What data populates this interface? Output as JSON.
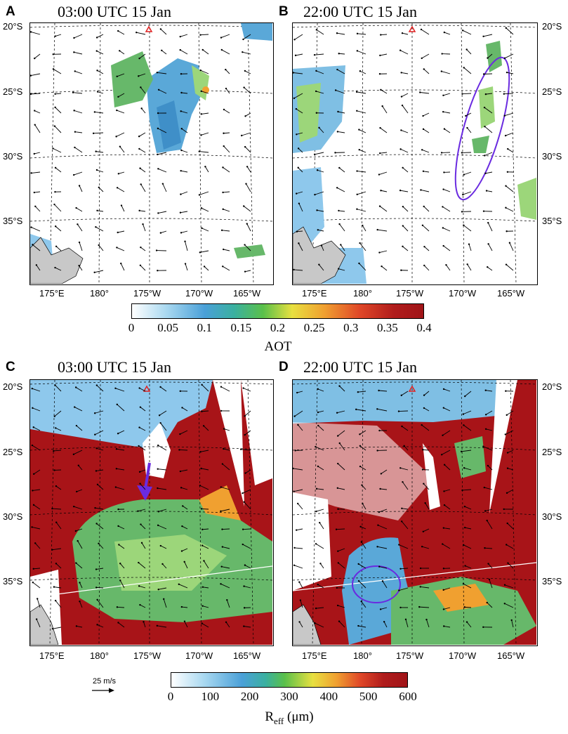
{
  "panels": [
    {
      "letter": "A",
      "title": "03:00 UTC 15 Jan"
    },
    {
      "letter": "B",
      "title": "22:00 UTC 15 Jan"
    },
    {
      "letter": "C",
      "title": "03:00 UTC 15 Jan"
    },
    {
      "letter": "D",
      "title": "22:00 UTC 15 Jan"
    }
  ],
  "lat_labels": [
    "20°S",
    "25°S",
    "30°S",
    "35°S"
  ],
  "lon_labels": [
    "175°E",
    "180°",
    "175°W",
    "170°W",
    "165°W"
  ],
  "colorbar_aot": {
    "ticks": [
      "0",
      "0.05",
      "0.1",
      "0.15",
      "0.2",
      "0.25",
      "0.3",
      "0.35",
      "0.4"
    ],
    "title": "AOT",
    "range": [
      0,
      0.4
    ]
  },
  "colorbar_reff": {
    "ticks": [
      "0",
      "100",
      "200",
      "300",
      "400",
      "500",
      "600"
    ],
    "title_main": "R",
    "title_sub": "eff",
    "title_unit": " (μm)",
    "range": [
      0,
      600
    ]
  },
  "wind_reference": {
    "label": "25 m/s"
  },
  "colors": {
    "land": "#c8c8c8",
    "marker": "#e02020",
    "annotation": "#6a2be0",
    "low": "#8ec8ec",
    "mid": "#5aa8d8",
    "high": "#a81418"
  }
}
